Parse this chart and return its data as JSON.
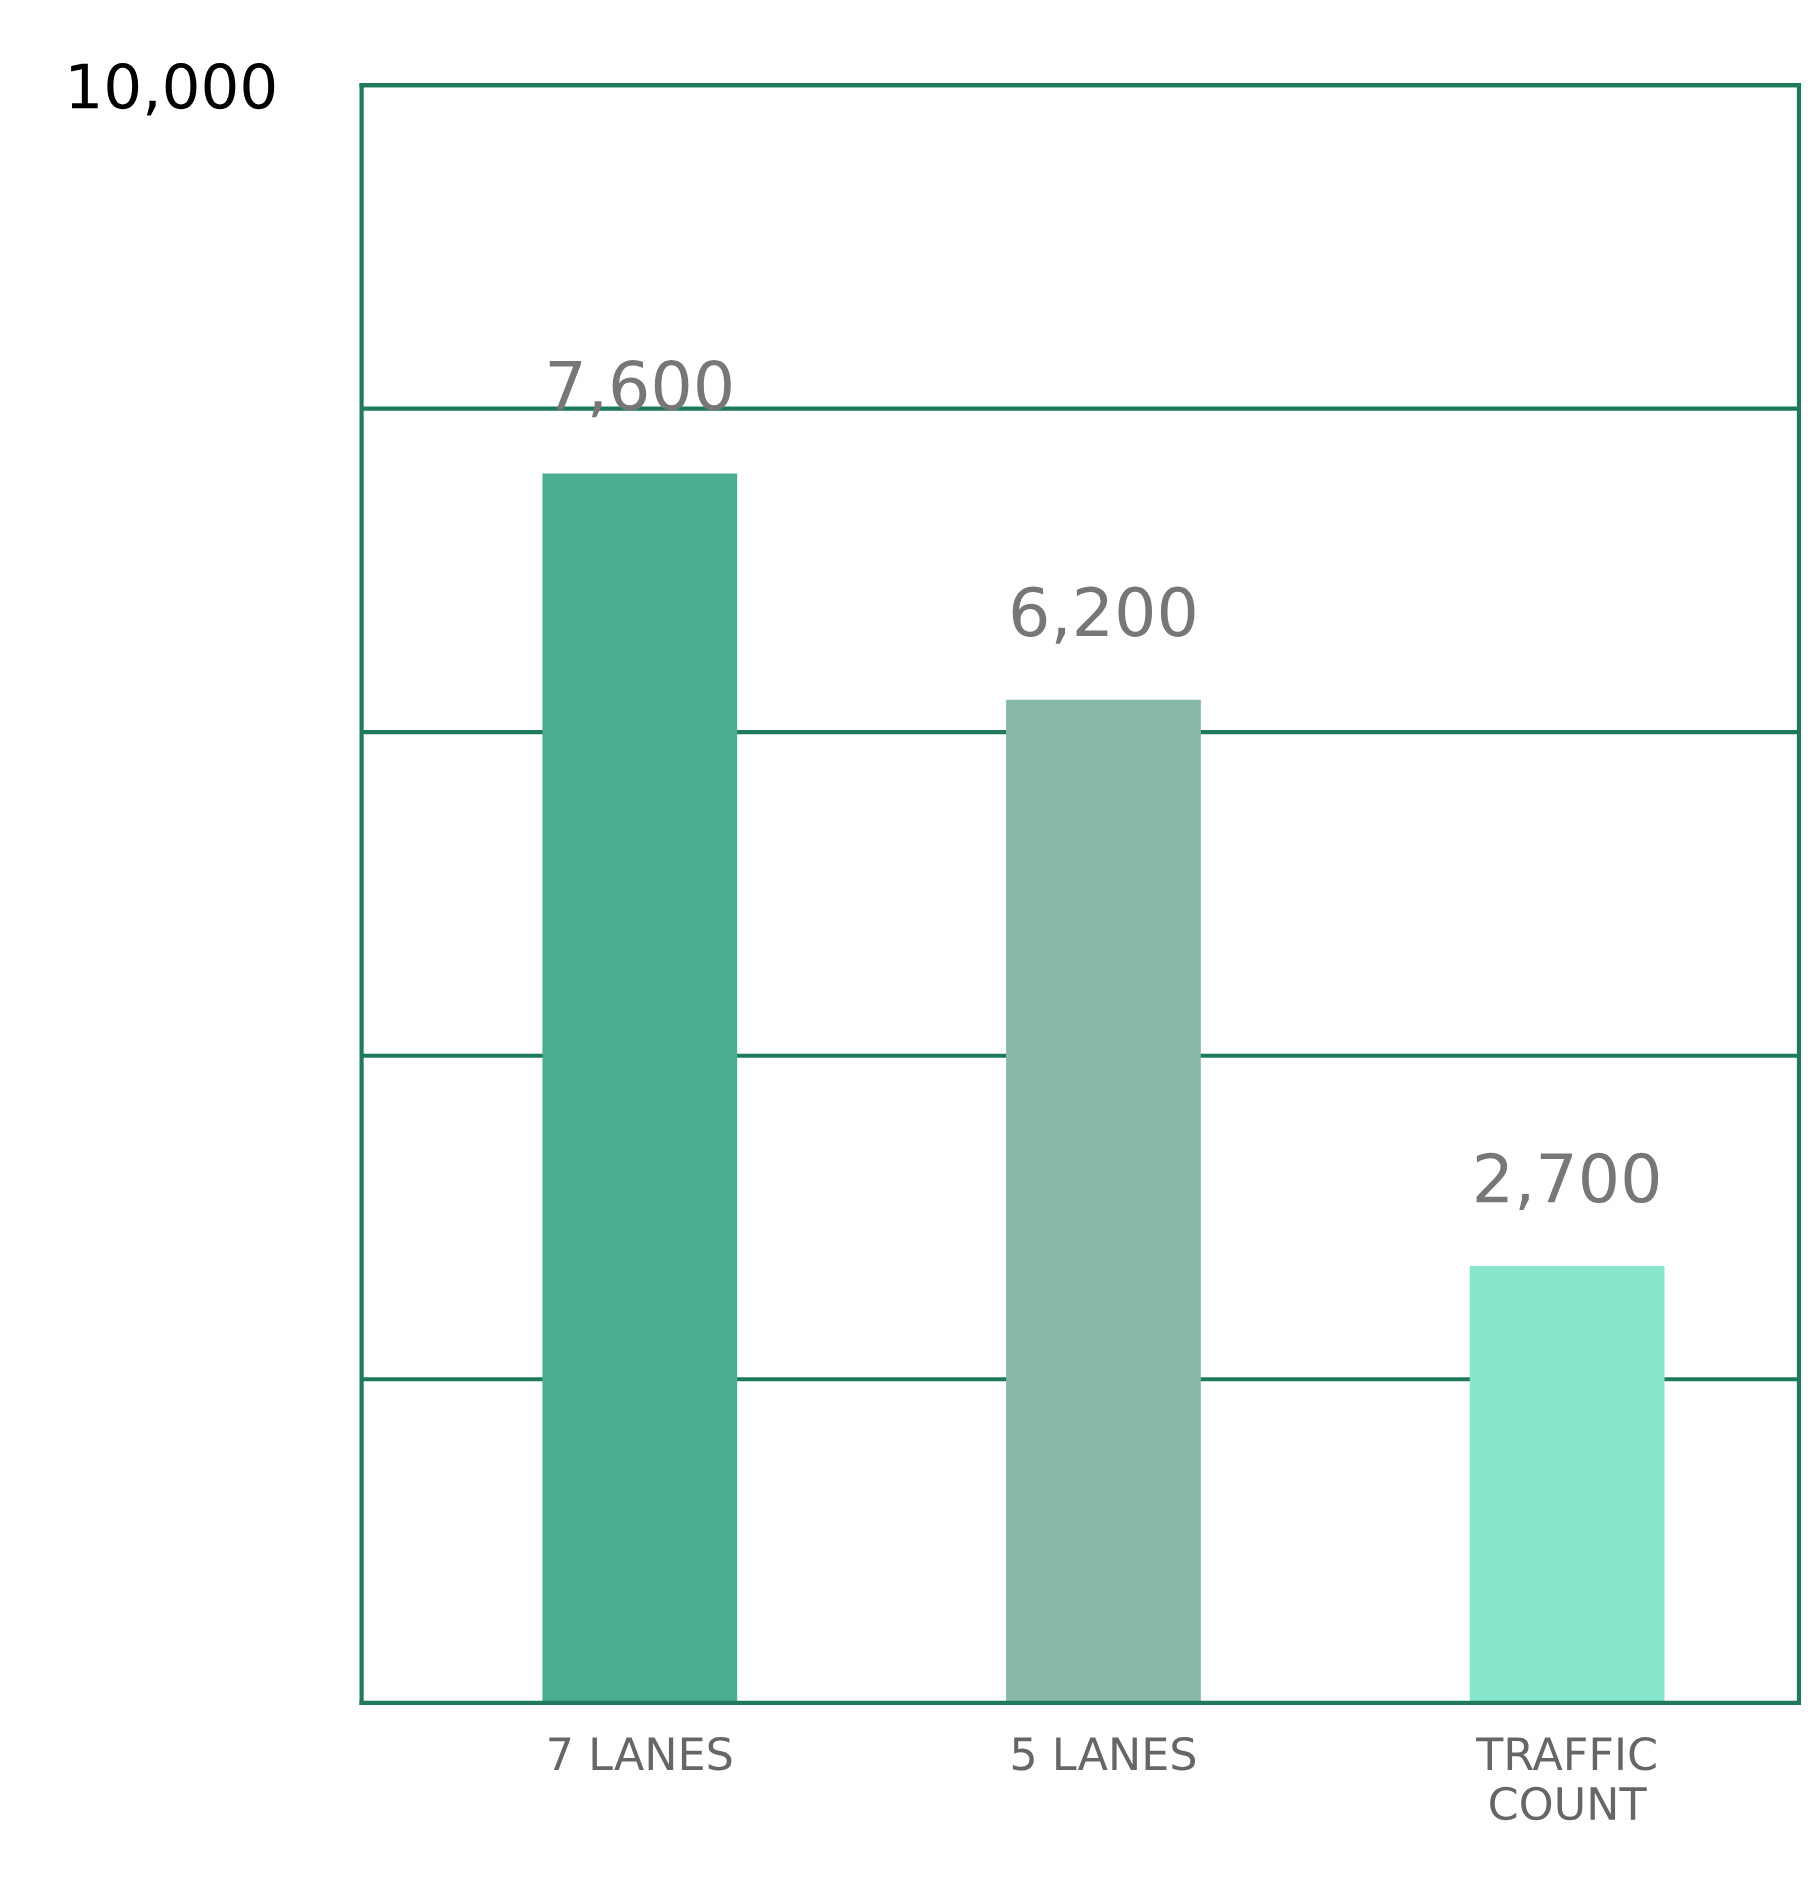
{
  "chart_data": {
    "type": "bar",
    "categories": [
      "7 LANES",
      "5 LANES",
      "TRAFFIC\nCOUNT"
    ],
    "values": [
      7600,
      6200,
      2700
    ],
    "colors": [
      "#4aaf90",
      "#88b8a8",
      "#86e6cc"
    ],
    "value_labels": [
      "7,600",
      "6,200",
      "2,700"
    ],
    "ylim": [
      0,
      10000
    ],
    "yticks": [
      {
        "value": 2000,
        "label": null
      },
      {
        "value": 4000,
        "label": null
      },
      {
        "value": 6000,
        "label": null
      },
      {
        "value": 8000,
        "label": null
      },
      {
        "value": 10000,
        "label": "10,000"
      }
    ],
    "grid": "y"
  }
}
